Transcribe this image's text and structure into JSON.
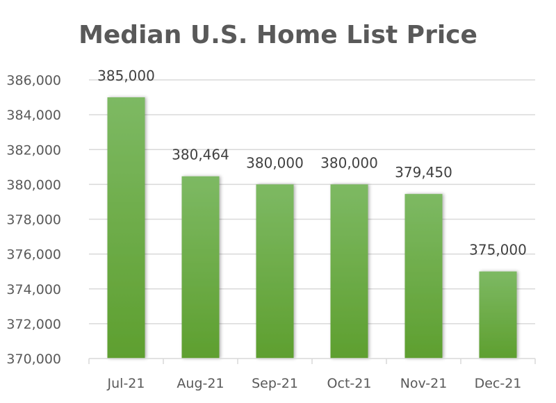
{
  "chart_data": {
    "type": "bar",
    "title": "Median U.S. Home List Price",
    "categories": [
      "Jul-21",
      "Aug-21",
      "Sep-21",
      "Oct-21",
      "Nov-21",
      "Dec-21"
    ],
    "values": [
      385000,
      380464,
      380000,
      380000,
      379450,
      375000
    ],
    "data_labels": [
      "385,000",
      "380,464",
      "380,000",
      "380,000",
      "379,450",
      "375,000"
    ],
    "ylim": [
      370000,
      386000
    ],
    "yticks": [
      370000,
      372000,
      374000,
      376000,
      378000,
      380000,
      382000,
      384000,
      386000
    ],
    "ytick_labels": [
      "370,000",
      "372,000",
      "374,000",
      "376,000",
      "378,000",
      "380,000",
      "382,000",
      "384,000",
      "386,000"
    ],
    "grid": true,
    "legend": "none",
    "colors": {
      "bar_top": "#7db963",
      "bar_bottom": "#5e9f2f",
      "grid": "#d9d9d9",
      "text": "#595959"
    }
  }
}
